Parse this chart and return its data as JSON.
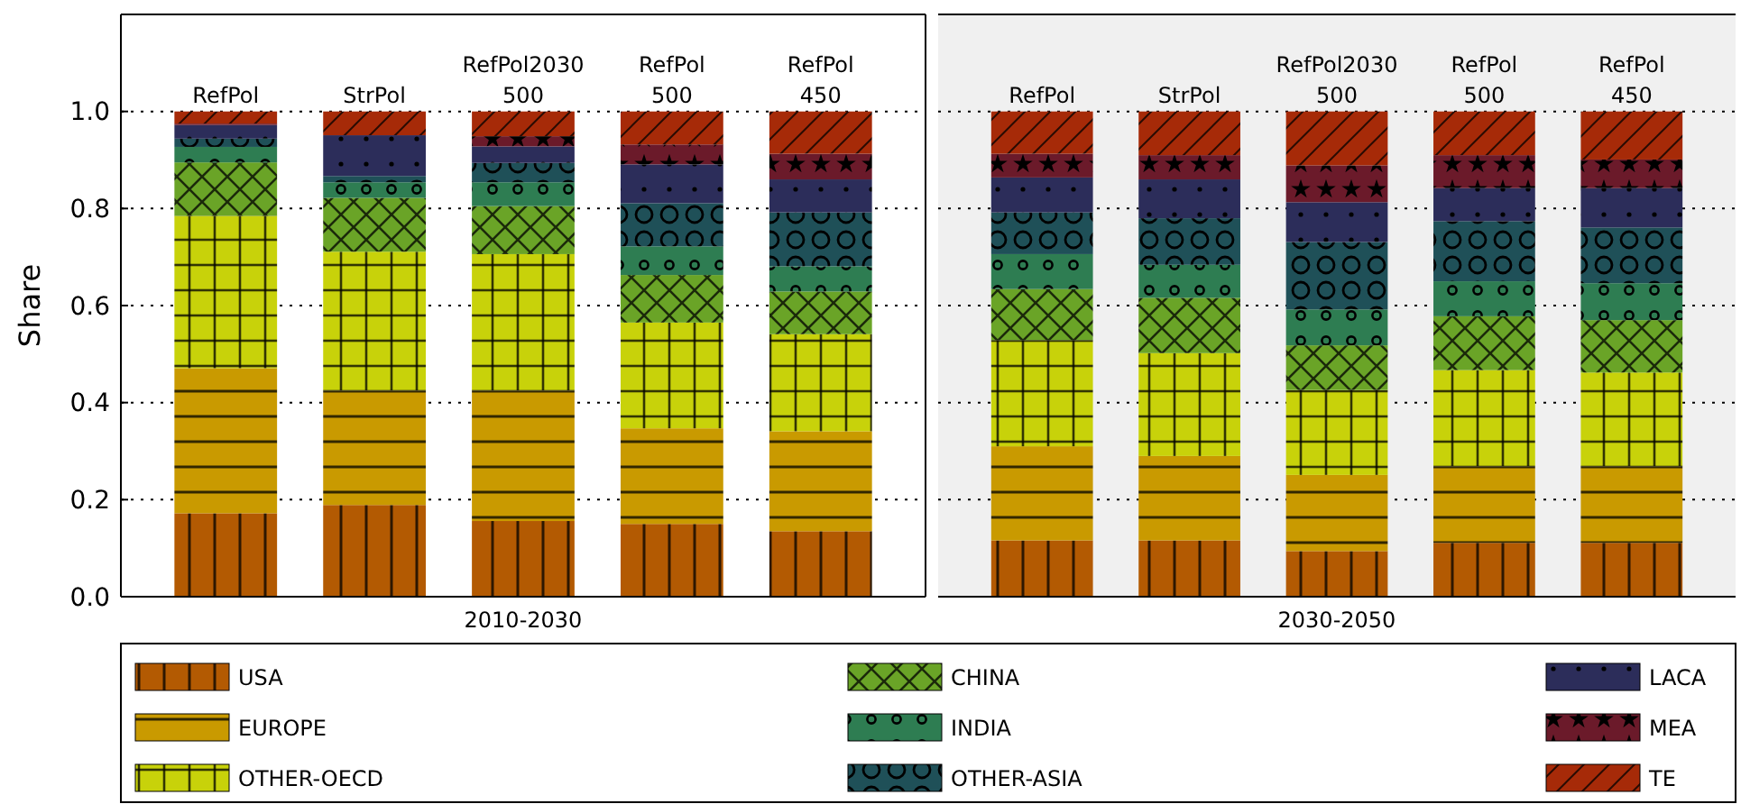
{
  "chart_data": [
    {
      "type": "bar",
      "stacked": true,
      "ylabel": "Share",
      "xlabel": "2010-2030",
      "categories": [
        "RefPol",
        "StrPol",
        "RefPol2030\n500",
        "RefPol\n500",
        "RefPol\n450"
      ],
      "ylim": [
        0,
        1.2
      ],
      "yticks": [
        {
          "value": 0,
          "label": "0.0"
        },
        {
          "value": 0.2,
          "label": "0.2"
        },
        {
          "value": 0.4,
          "label": "0.4"
        },
        {
          "value": 0.6,
          "label": "0.6"
        },
        {
          "value": 0.8,
          "label": "0.8"
        },
        {
          "value": 1,
          "label": "1.0"
        }
      ],
      "grid": "y",
      "legend": "bottom",
      "series": [
        {
          "name": "USA",
          "color": "#b35a02",
          "values": [
            0.172,
            0.189,
            0.156,
            0.15,
            0.135
          ]
        },
        {
          "name": "EUROPE",
          "color": "#c99a00",
          "values": [
            0.299,
            0.236,
            0.269,
            0.197,
            0.206
          ]
        },
        {
          "name": "OTHER-OECD",
          "color": "#c8d20a",
          "values": [
            0.314,
            0.286,
            0.281,
            0.218,
            0.2
          ]
        },
        {
          "name": "CHINA",
          "color": "#6aa427",
          "values": [
            0.11,
            0.111,
            0.099,
            0.098,
            0.088
          ]
        },
        {
          "name": "INDIA",
          "color": "#2e7d52",
          "values": [
            0.032,
            0.032,
            0.049,
            0.059,
            0.052
          ]
        },
        {
          "name": "OTHER-ASIA",
          "color": "#1f5058",
          "values": [
            0.017,
            0.013,
            0.04,
            0.089,
            0.111
          ]
        },
        {
          "name": "LACA",
          "color": "#2c2d5a",
          "values": [
            0.028,
            0.084,
            0.034,
            0.08,
            0.068
          ]
        },
        {
          "name": "MEA",
          "color": "#6b1a2a",
          "values": [
            0.003,
            0,
            0.021,
            0.041,
            0.053
          ]
        },
        {
          "name": "TE",
          "color": "#a62a08",
          "values": [
            0.025,
            0.049,
            0.051,
            0.068,
            0.087
          ]
        }
      ]
    },
    {
      "type": "bar",
      "stacked": true,
      "xlabel": "2030-2050",
      "categories": [
        "RefPol",
        "StrPol",
        "RefPol2030\n500",
        "RefPol\n500",
        "RefPol\n450"
      ],
      "ylim": [
        0,
        1.2
      ],
      "yticks": [
        0,
        0.2,
        0.4,
        0.6,
        0.8,
        1
      ],
      "grid": "y",
      "tick_labels": "x",
      "series": [
        {
          "color": "#b35a02",
          "values": [
            0.116,
            0.116,
            0.094,
            0.111,
            0.111
          ]
        },
        {
          "color": "#c99a00",
          "values": [
            0.194,
            0.174,
            0.157,
            0.158,
            0.158
          ]
        },
        {
          "color": "#c8d20a",
          "values": [
            0.219,
            0.212,
            0.175,
            0.198,
            0.193
          ]
        },
        {
          "color": "#6aa427",
          "values": [
            0.105,
            0.114,
            0.092,
            0.111,
            0.108
          ]
        },
        {
          "color": "#2e7d52",
          "values": [
            0.072,
            0.068,
            0.074,
            0.072,
            0.076
          ]
        },
        {
          "color": "#1f5058",
          "values": [
            0.086,
            0.096,
            0.139,
            0.124,
            0.115
          ]
        },
        {
          "color": "#2c2d5a",
          "values": [
            0.072,
            0.08,
            0.082,
            0.068,
            0.081
          ]
        },
        {
          "color": "#6b1a2a",
          "values": [
            0.049,
            0.05,
            0.076,
            0.068,
            0.059
          ]
        },
        {
          "color": "#a62a08",
          "values": [
            0.087,
            0.09,
            0.111,
            0.09,
            0.099
          ]
        }
      ]
    }
  ]
}
